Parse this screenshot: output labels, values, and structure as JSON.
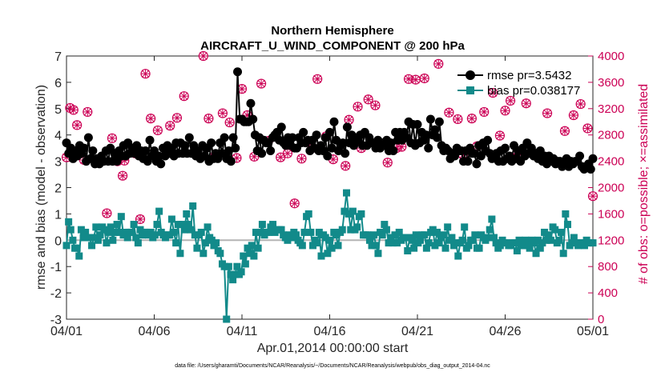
{
  "chart_data": {
    "type": "line",
    "title": "Northern Hemisphere",
    "subtitle": "AIRCRAFT_U_WIND_COMPONENT @ 200 hPa",
    "xlabel": "Apr.01,2014 00:00:00 start",
    "ylabel": "rmse and bias (model - observation)",
    "ylabel_right": "# of obs: o=possible; ×=assimilated",
    "xlim": [
      0,
      30
    ],
    "ylim": [
      -3,
      7
    ],
    "ylim_right": [
      0,
      4000
    ],
    "x_tick_values": [
      0,
      5,
      10,
      15,
      20,
      25,
      30
    ],
    "x_tick_labels": [
      "04/01",
      "04/06",
      "04/11",
      "04/16",
      "04/21",
      "04/26",
      "05/01"
    ],
    "y_ticks": [
      -3,
      -2,
      -1,
      0,
      1,
      2,
      3,
      4,
      5,
      6,
      7
    ],
    "y_ticks_right": [
      0,
      400,
      800,
      1200,
      1600,
      2000,
      2400,
      2800,
      3200,
      3600,
      4000
    ],
    "legend": [
      {
        "label": "rmse pr=3.5432",
        "color": "#000000"
      },
      {
        "label": "bias pr=0.038177",
        "color": "#128a8a"
      }
    ],
    "footnote": "data file: /Users/gharamti/Documents/NCAR/Reanalysis/~/Documents/NCAR/Reanalysis/webpub/obs_diag_output_2014-04.nc",
    "series": [
      {
        "name": "rmse",
        "color": "#000000",
        "values": [
          3.7,
          3.3,
          3.5,
          3.1,
          3.4,
          3.2,
          3.6,
          3.3,
          3.5,
          3.0,
          3.9,
          3.1,
          3.4,
          2.9,
          3.1,
          2.9,
          3.2,
          3.0,
          3.4,
          3.0,
          3.5,
          3.0,
          3.3,
          3.0,
          3.4,
          3.2,
          3.6,
          3.2,
          3.7,
          3.3,
          3.5,
          3.3,
          3.6,
          3.2,
          3.4,
          3.1,
          3.4,
          3.0,
          3.8,
          3.2,
          3.4,
          3.0,
          3.2,
          2.9,
          3.5,
          3.2,
          3.6,
          3.3,
          3.5,
          3.2,
          3.7,
          3.3,
          3.7,
          3.3,
          3.6,
          3.3,
          3.9,
          3.3,
          3.6,
          3.2,
          3.4,
          3.1,
          3.6,
          3.2,
          3.5,
          3.0,
          3.7,
          3.1,
          3.3,
          3.1,
          3.7,
          3.3,
          3.9,
          3.1,
          3.4,
          3.0,
          3.9,
          3.5,
          6.4,
          4.6,
          4.6,
          4.5,
          4.5,
          4.5,
          5.2,
          4.6,
          4.0,
          3.4,
          3.9,
          3.3,
          3.8,
          3.7,
          3.7,
          3.4,
          3.9,
          4.0,
          4.1,
          3.8,
          4.3,
          3.7,
          3.6,
          3.9,
          3.6,
          3.9,
          3.5,
          3.5,
          3.9,
          3.7,
          4.1,
          3.7,
          3.8,
          3.4,
          3.8,
          3.5,
          4.0,
          3.4,
          3.6,
          3.4,
          3.9,
          3.2,
          4.1,
          3.5,
          4.5,
          3.8,
          3.4,
          3.6,
          3.7,
          3.3,
          4.3,
          3.7,
          4.0,
          3.6,
          3.9,
          3.8,
          4.0,
          3.6,
          4.1,
          3.6,
          3.9,
          3.7,
          3.7,
          3.5,
          3.8,
          3.5,
          3.7,
          3.6,
          3.8,
          3.4,
          3.7,
          3.4,
          4.1,
          3.8,
          4.1,
          3.8,
          4.1,
          3.9,
          4.5,
          3.7,
          4.4,
          3.6,
          4.4,
          3.7,
          4.1,
          3.8,
          4.0,
          3.5,
          4.6,
          4.0,
          4.2,
          3.9,
          4.5,
          3.6,
          3.4,
          3.5,
          3.4,
          3.1,
          3.3,
          3.2,
          3.5,
          3.4,
          3.4,
          3.0,
          3.4,
          3.0,
          3.5,
          3.3,
          3.3,
          2.9,
          3.6,
          3.2,
          3.7,
          3.4,
          3.8,
          3.3,
          3.1,
          3.2,
          3.3,
          3.0,
          3.4,
          3.0,
          3.5,
          3.1,
          3.2,
          3.0,
          3.6,
          3.1,
          3.4,
          3.0,
          3.5,
          3.2,
          3.7,
          3.3,
          3.5,
          3.2,
          3.3,
          3.1,
          3.4,
          3.0,
          3.2,
          2.9,
          3.2,
          3.0,
          3.1,
          2.9,
          3.0,
          3.0,
          2.8,
          2.9,
          3.1,
          2.8,
          3.0,
          2.9,
          3.0,
          3.0,
          3.2,
          2.8,
          2.7,
          2.8,
          2.9,
          2.7,
          3.1
        ]
      },
      {
        "name": "bias",
        "color": "#128a8a",
        "values": [
          -0.2,
          0.7,
          0.4,
          0.0,
          -0.3,
          -0.3,
          -0.6,
          0.4,
          0.1,
          0.3,
          0.1,
          0.1,
          -0.2,
          0.1,
          0.5,
          0.0,
          0.2,
          0.5,
          0.4,
          -0.1,
          0.3,
          0.5,
          0.0,
          0.3,
          0.6,
          0.3,
          0.9,
          0.2,
          0.3,
          0.1,
          0.3,
          0.3,
          0.6,
          0.1,
          -0.1,
          0.4,
          0.2,
          0.3,
          0.3,
          0.2,
          0.3,
          0.1,
          0.2,
          0.6,
          1.1,
          0.3,
          0.2,
          0.1,
          0.2,
          0.2,
          0.8,
          0.3,
          -0.1,
          0.6,
          -0.5,
          0.6,
          0.4,
          1.0,
          0.6,
          0.4,
          1.3,
          0.2,
          -0.3,
          0.2,
          0.3,
          -0.5,
          -0.1,
          0.5,
          0.1,
          0.0,
          -0.2,
          -0.1,
          -0.4,
          -0.5,
          -0.9,
          -1.0,
          -3.0,
          -1.0,
          -1.3,
          -1.5,
          -1.3,
          -1.0,
          -1.3,
          -1.2,
          -0.6,
          -0.9,
          -0.3,
          -0.5,
          -0.2,
          -0.6,
          0.3,
          -0.3,
          0.3,
          0.6,
          0.2,
          0.3,
          0.3,
          0.5,
          0.6,
          0.3,
          0.4,
          0.4,
          0.4,
          0.2,
          0.1,
          0.0,
          0.2,
          0.1,
          0.3,
          0.2,
          0.0,
          -0.1,
          -0.2,
          0.3,
          0.9,
          1.0,
          0.3,
          -0.2,
          0.0,
          -0.1,
          0.3,
          -0.6,
          0.2,
          0.1,
          -0.5,
          0.0,
          -0.3,
          0.3,
          0.2,
          -0.2,
          0.3,
          0.4,
          1.1,
          1.8,
          1.0,
          0.4,
          1.1,
          0.4,
          0.5,
          0.9,
          1.0,
          0.2,
          0.2,
          0.2,
          0.0,
          -0.2,
          0.2,
          -0.2,
          -0.5,
          0.3,
          0.2,
          0.6,
          0.4,
          -0.1,
          0.1,
          -0.1,
          0.2,
          -0.1,
          0.3,
          0.0,
          0.1,
          0.1,
          -0.4,
          0.1,
          0.0,
          -0.3,
          0.2,
          -0.1,
          0.0,
          0.2,
          0.2,
          -0.3,
          -0.1,
          0.3,
          0.4,
          -0.2,
          0.3,
          -0.1,
          0.1,
          0.2,
          -0.3,
          0.5,
          0.0,
          0.1,
          -0.2,
          -0.1,
          -0.6,
          -0.1,
          0.0,
          0.5,
          -0.3,
          -0.2,
          0.0,
          0.0,
          0.2,
          -0.3,
          -0.3,
          0.2,
          0.1,
          0.0,
          0.1,
          0.4,
          0.8,
          0.1,
          -0.1,
          -0.3,
          -0.2,
          0.0,
          -0.1,
          -0.1,
          -0.2,
          -0.2,
          -0.1,
          -0.1,
          -0.4,
          0.0,
          -0.2,
          -0.2,
          0.0,
          -0.2,
          -0.3,
          0.0,
          -0.1,
          -0.5,
          0.0,
          -0.3,
          -0.1,
          0.3,
          0.0,
          0.2,
          0.0,
          0.5,
          0.4,
          -0.1,
          0.0,
          0.3,
          -0.5,
          1.0,
          0.6,
          -0.2,
          -0.1,
          0.1,
          -0.1,
          -0.2,
          -0.1,
          -0.1,
          -0.2,
          0.0,
          -0.1,
          -0.1,
          -0.1
        ]
      },
      {
        "name": "possible",
        "axis": "right",
        "marker": "circle",
        "color": "#cc0055",
        "x": [
          0.0,
          0.2,
          0.4,
          0.6,
          1.0,
          1.2,
          1.7,
          2.3,
          2.6,
          2.9,
          3.2,
          3.3,
          3.9,
          4.2,
          4.5,
          4.8,
          5.2,
          5.9,
          6.3,
          6.7,
          7.4,
          7.8,
          8.1,
          8.5,
          8.9,
          9.3,
          9.7,
          10.0,
          10.3,
          10.7,
          11.1,
          11.5,
          12.2,
          12.6,
          13.0,
          13.4,
          14.0,
          14.3,
          14.8,
          15.2,
          15.9,
          16.1,
          16.6,
          16.8,
          17.2,
          17.6,
          18.3,
          18.8,
          19.1,
          19.5,
          19.9,
          20.4,
          21.2,
          21.8,
          22.3,
          22.6,
          23.1,
          23.4,
          23.8,
          24.3,
          24.7,
          25.0,
          25.3,
          25.7,
          26.2,
          27.4,
          27.8,
          28.4,
          28.9,
          29.3,
          29.7,
          30.0
        ],
        "values": [
          2460,
          3210,
          3180,
          2950,
          2420,
          3150,
          2420,
          1610,
          2750,
          2400,
          2180,
          2410,
          2520,
          1520,
          3730,
          3050,
          2870,
          2940,
          3060,
          3390,
          2510,
          4000,
          3050,
          2500,
          3130,
          2990,
          2450,
          3500,
          3100,
          2470,
          3580,
          2710,
          2460,
          2520,
          1760,
          2440,
          2600,
          3650,
          2780,
          2430,
          2330,
          3030,
          3230,
          2600,
          3340,
          3250,
          2380,
          2600,
          2620,
          3650,
          3640,
          3660,
          3880,
          3140,
          3040,
          2500,
          3050,
          2630,
          3150,
          3440,
          2790,
          3170,
          3320,
          2550,
          3280,
          3130,
          2400,
          2860,
          3100,
          3270,
          2900,
          1870
        ]
      },
      {
        "name": "assimilated",
        "axis": "right",
        "marker": "x",
        "color": "#cc0055",
        "x": [
          0.0,
          0.2,
          0.4,
          0.6,
          1.0,
          1.2,
          1.7,
          2.3,
          2.6,
          2.9,
          3.2,
          3.3,
          3.9,
          4.2,
          4.5,
          4.8,
          5.2,
          5.9,
          6.3,
          6.7,
          7.4,
          7.8,
          8.1,
          8.5,
          8.9,
          9.3,
          9.7,
          10.0,
          10.3,
          10.7,
          11.1,
          11.5,
          12.2,
          12.6,
          13.0,
          13.4,
          14.0,
          14.3,
          14.8,
          15.2,
          15.9,
          16.1,
          16.6,
          16.8,
          17.2,
          17.6,
          18.3,
          18.8,
          19.1,
          19.5,
          19.9,
          20.4,
          21.2,
          21.8,
          22.3,
          22.6,
          23.1,
          23.4,
          23.8,
          24.3,
          24.7,
          25.0,
          25.3,
          25.7,
          26.2,
          27.4,
          27.8,
          28.4,
          28.9,
          29.3,
          29.7,
          30.0
        ],
        "values": [
          2460,
          3210,
          3180,
          2950,
          2420,
          3150,
          2420,
          1610,
          2750,
          2400,
          2180,
          2410,
          2520,
          1520,
          3730,
          3050,
          2870,
          2940,
          3060,
          3390,
          2510,
          4000,
          3050,
          2500,
          3130,
          2990,
          2450,
          3500,
          3100,
          2470,
          3580,
          2710,
          2460,
          2520,
          1760,
          2440,
          2600,
          3650,
          2780,
          2430,
          2330,
          3030,
          3230,
          2600,
          3340,
          3250,
          2380,
          2600,
          2620,
          3650,
          3640,
          3660,
          3880,
          3140,
          3040,
          2500,
          3050,
          2630,
          3150,
          3440,
          2790,
          3170,
          3320,
          2550,
          3280,
          3130,
          2400,
          2860,
          3100,
          3270,
          2900,
          1870
        ]
      }
    ]
  }
}
